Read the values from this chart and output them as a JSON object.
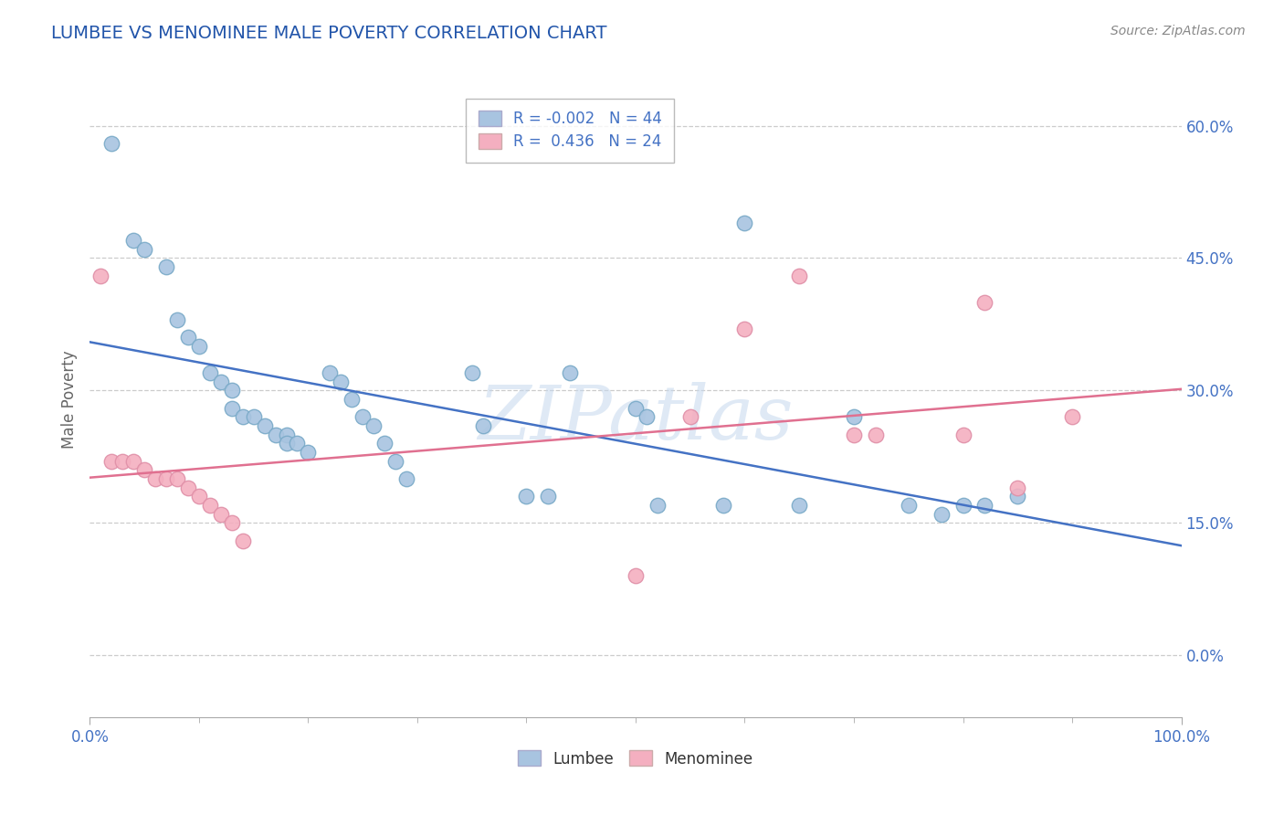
{
  "title": "LUMBEE VS MENOMINEE MALE POVERTY CORRELATION CHART",
  "source": "Source: ZipAtlas.com",
  "ylabel": "Male Poverty",
  "lumbee_R": -0.002,
  "lumbee_N": 44,
  "menominee_R": 0.436,
  "menominee_N": 24,
  "lumbee_color": "#a8c4e0",
  "lumbee_edge_color": "#7aaac8",
  "lumbee_line_color": "#4472c4",
  "menominee_color": "#f4afc0",
  "menominee_edge_color": "#e090a8",
  "menominee_line_color": "#e07090",
  "lumbee_x": [
    0.02,
    0.04,
    0.05,
    0.07,
    0.08,
    0.09,
    0.1,
    0.11,
    0.12,
    0.13,
    0.13,
    0.14,
    0.15,
    0.16,
    0.17,
    0.18,
    0.18,
    0.19,
    0.2,
    0.22,
    0.23,
    0.24,
    0.25,
    0.26,
    0.27,
    0.28,
    0.29,
    0.35,
    0.36,
    0.4,
    0.42,
    0.44,
    0.5,
    0.51,
    0.52,
    0.58,
    0.6,
    0.65,
    0.7,
    0.75,
    0.78,
    0.8,
    0.82,
    0.85
  ],
  "lumbee_y": [
    0.58,
    0.47,
    0.46,
    0.44,
    0.38,
    0.36,
    0.35,
    0.32,
    0.31,
    0.3,
    0.28,
    0.27,
    0.27,
    0.26,
    0.25,
    0.25,
    0.24,
    0.24,
    0.23,
    0.32,
    0.31,
    0.29,
    0.27,
    0.26,
    0.24,
    0.22,
    0.2,
    0.32,
    0.26,
    0.18,
    0.18,
    0.32,
    0.28,
    0.27,
    0.17,
    0.17,
    0.49,
    0.17,
    0.27,
    0.17,
    0.16,
    0.17,
    0.17,
    0.18
  ],
  "menominee_x": [
    0.01,
    0.02,
    0.03,
    0.04,
    0.05,
    0.06,
    0.07,
    0.08,
    0.09,
    0.1,
    0.11,
    0.12,
    0.13,
    0.14,
    0.5,
    0.55,
    0.6,
    0.65,
    0.7,
    0.72,
    0.8,
    0.82,
    0.85,
    0.9
  ],
  "menominee_y": [
    0.43,
    0.22,
    0.22,
    0.22,
    0.21,
    0.2,
    0.2,
    0.2,
    0.19,
    0.18,
    0.17,
    0.16,
    0.15,
    0.13,
    0.09,
    0.27,
    0.37,
    0.43,
    0.25,
    0.25,
    0.25,
    0.4,
    0.19,
    0.27
  ],
  "xlim": [
    0.0,
    1.0
  ],
  "ylim": [
    -0.07,
    0.65
  ],
  "yticks": [
    0.0,
    0.15,
    0.3,
    0.45,
    0.6
  ],
  "ytick_labels": [
    "0.0%",
    "15.0%",
    "30.0%",
    "45.0%",
    "60.0%"
  ],
  "watermark": "ZIPatlas",
  "background_color": "#ffffff",
  "grid_color": "#cccccc",
  "title_color": "#2255aa",
  "axis_label_color": "#666666",
  "tick_label_color": "#4472c4"
}
